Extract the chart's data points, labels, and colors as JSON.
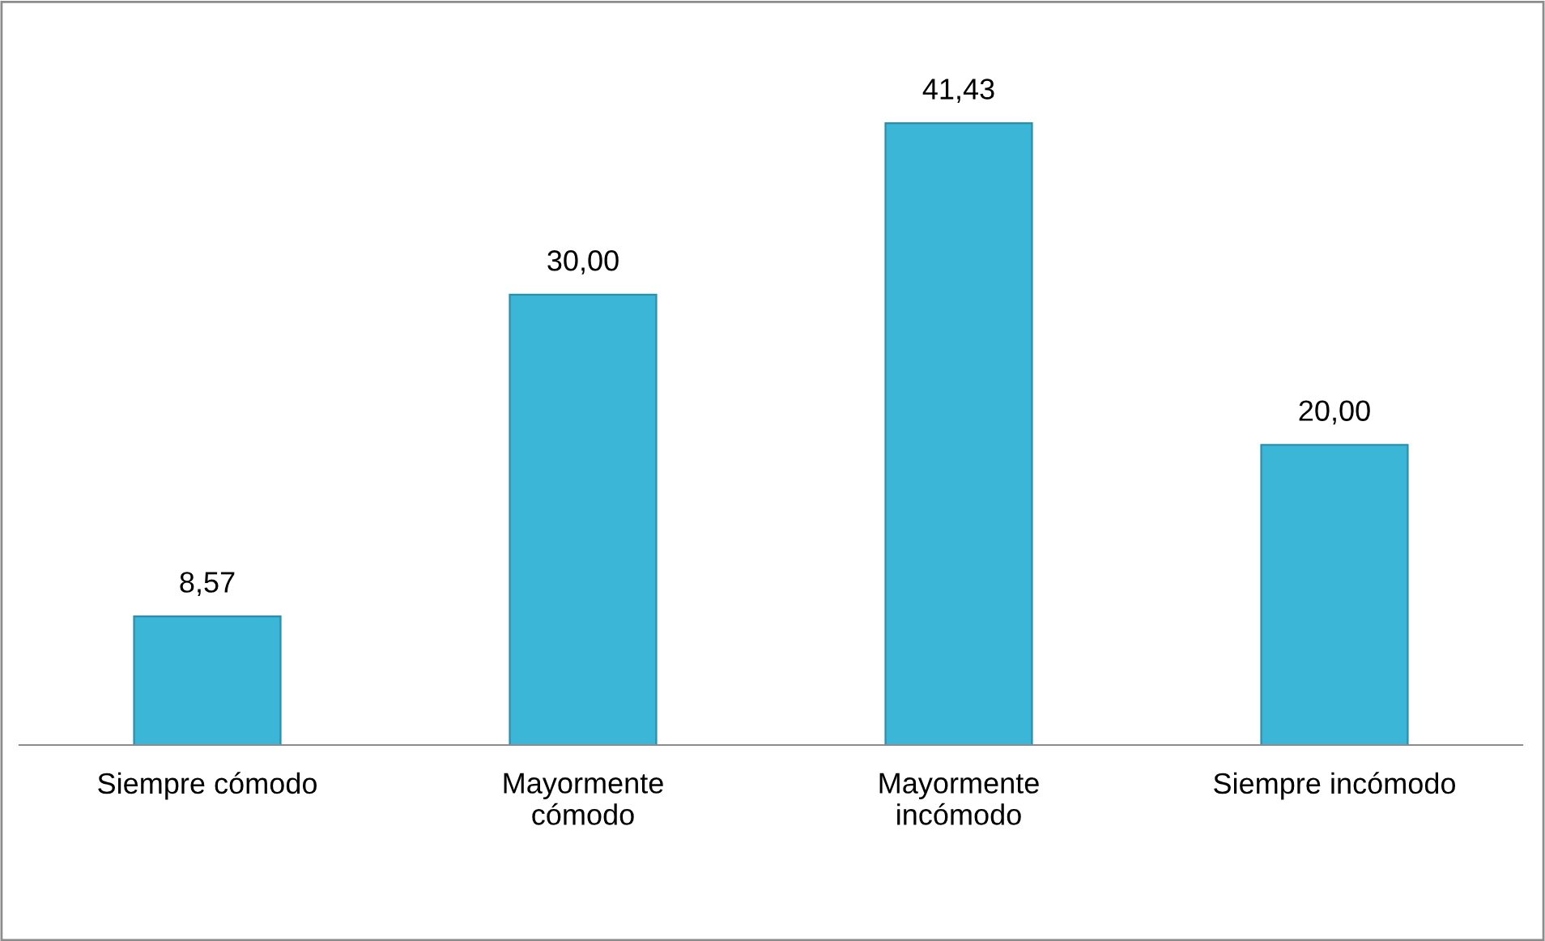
{
  "chart_data": {
    "type": "bar",
    "categories": [
      "Siempre cómodo",
      "Mayormente\ncómodo",
      "Mayormente\nincómodo",
      "Siempre incómodo"
    ],
    "values": [
      8.57,
      30.0,
      41.43,
      20.0
    ],
    "value_labels": [
      "8,57",
      "30,00",
      "41,43",
      "20,00"
    ],
    "color": "#3bb6d6",
    "grid": false,
    "legend": false
  }
}
